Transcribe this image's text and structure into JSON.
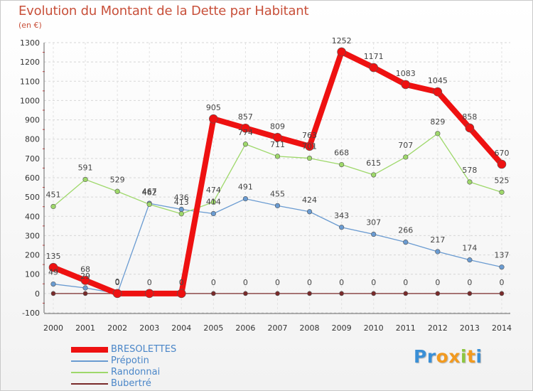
{
  "header": {
    "title": "Evolution du Montant de la Dette par Habitant",
    "subtitle": "(en €)"
  },
  "chart_data": {
    "type": "line",
    "title": "Evolution du Montant de la Dette par Habitant",
    "subtitle": "(en €)",
    "xlabel": "",
    "ylabel": "",
    "x": [
      2000,
      2001,
      2002,
      2003,
      2004,
      2005,
      2006,
      2007,
      2008,
      2009,
      2010,
      2011,
      2012,
      2013,
      2014
    ],
    "ylim": [
      -100,
      1300
    ],
    "yticks": [
      -100,
      0,
      100,
      200,
      300,
      400,
      500,
      600,
      700,
      800,
      900,
      1000,
      1100,
      1200,
      1300
    ],
    "grid": true,
    "legend_position": "bottom-left",
    "series": [
      {
        "name": "Bubertré",
        "color": "#7a2a2a",
        "values": [
          0,
          0,
          0,
          0,
          0,
          0,
          0,
          0,
          0,
          0,
          0,
          0,
          0,
          0,
          0
        ],
        "labels": [
          "",
          "",
          "",
          "",
          "",
          "0",
          "0",
          "0",
          "0",
          "0",
          "0",
          "0",
          "0",
          "0",
          "0"
        ]
      },
      {
        "name": "Prépotin",
        "color": "#6a9bd1",
        "values": [
          49,
          29,
          0,
          467,
          436,
          414,
          491,
          455,
          424,
          343,
          307,
          266,
          217,
          174,
          137
        ],
        "labels": [
          "49",
          "29",
          "0",
          "467",
          "436",
          "414",
          "491",
          "455",
          "424",
          "343",
          "307",
          "266",
          "217",
          "174",
          "137"
        ]
      },
      {
        "name": "Randonnai",
        "color": "#9ed86a",
        "values": [
          451,
          591,
          529,
          462,
          413,
          474,
          774,
          711,
          701,
          668,
          615,
          707,
          829,
          578,
          525
        ],
        "labels": [
          "451",
          "591",
          "529",
          "462",
          "413",
          "474",
          "774",
          "711",
          "701",
          "668",
          "615",
          "707",
          "829",
          "578",
          "525"
        ]
      },
      {
        "name": "BRESOLETTES",
        "color": "#ee1111",
        "values": [
          135,
          68,
          0,
          0,
          0,
          905,
          857,
          809,
          763,
          1252,
          1171,
          1083,
          1045,
          858,
          670
        ],
        "labels": [
          "135",
          "68",
          "0",
          "0",
          "0",
          "905",
          "857",
          "809",
          "763",
          "1252",
          "1171",
          "1083",
          "1045",
          "858",
          "670"
        ]
      }
    ]
  },
  "legend": {
    "items": [
      {
        "name": "BRESOLETTES",
        "color": "#ee1111",
        "text_color": "#4a86c8"
      },
      {
        "name": "Prépotin",
        "color": "#6a9bd1",
        "text_color": "#4a86c8"
      },
      {
        "name": "Randonnai",
        "color": "#9ed86a",
        "text_color": "#4a86c8"
      },
      {
        "name": "Bubertré",
        "color": "#7a2a2a",
        "text_color": "#4a86c8"
      }
    ]
  },
  "logo": {
    "letters": [
      "P",
      "r",
      "o",
      "x",
      "i",
      "t",
      "i"
    ],
    "colors": [
      "#3a8fd6",
      "#3a8fd6",
      "#f29a1f",
      "#f29a1f",
      "#8cc63f",
      "#f29a1f",
      "#3a8fd6"
    ]
  }
}
